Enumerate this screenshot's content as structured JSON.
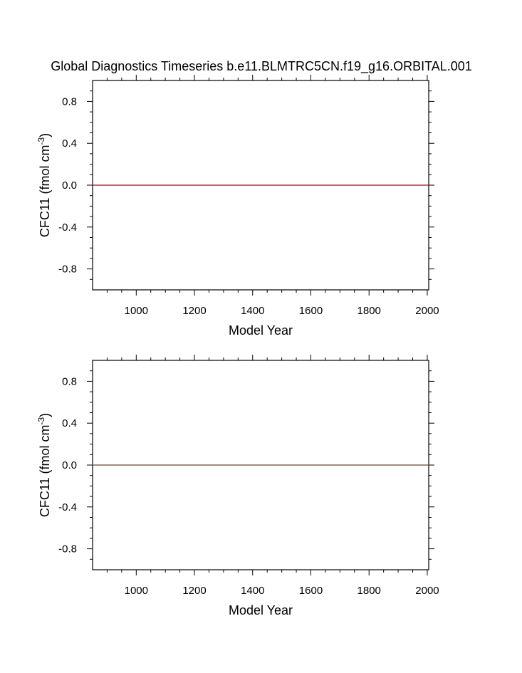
{
  "figure": {
    "title": "Global Diagnostics Timeseries b.e11.BLMTRC5CN.f19_g16.ORBITAL.001"
  },
  "chart_data": [
    {
      "type": "line",
      "title": "Global Diagnostics Timeseries b.e11.BLMTRC5CN.f19_g16.ORBITAL.001",
      "xlabel": "Model Year",
      "ylabel": {
        "base": "CFC11 (fmol cm",
        "sup": "-3",
        "close": ")"
      },
      "xlim": [
        850,
        2005
      ],
      "ylim": [
        -1.0,
        1.0
      ],
      "xticks": [
        "1000",
        "1200",
        "1400",
        "1600",
        "1800",
        "2000"
      ],
      "yticks": [
        "0.8",
        "0.4",
        "0.0",
        "-0.4",
        "-0.8"
      ],
      "grid": false,
      "series": [
        {
          "color": "#8b1a1a",
          "x": [
            850,
            2005
          ],
          "y": [
            0.0,
            0.0
          ]
        }
      ]
    },
    {
      "type": "line",
      "title": "",
      "xlabel": "Model Year",
      "ylabel": {
        "base": "CFC11 (fmol cm",
        "sup": "-3",
        "close": ")"
      },
      "xlim": [
        850,
        2005
      ],
      "ylim": [
        -1.0,
        1.0
      ],
      "xticks": [
        "1000",
        "1200",
        "1400",
        "1600",
        "1800",
        "2000"
      ],
      "yticks": [
        "0.8",
        "0.4",
        "0.0",
        "-0.4",
        "-0.8"
      ],
      "grid": false,
      "series": [
        {
          "color": "#6b4a2a",
          "x": [
            850,
            2005
          ],
          "y": [
            0.0,
            0.0
          ]
        }
      ]
    }
  ]
}
